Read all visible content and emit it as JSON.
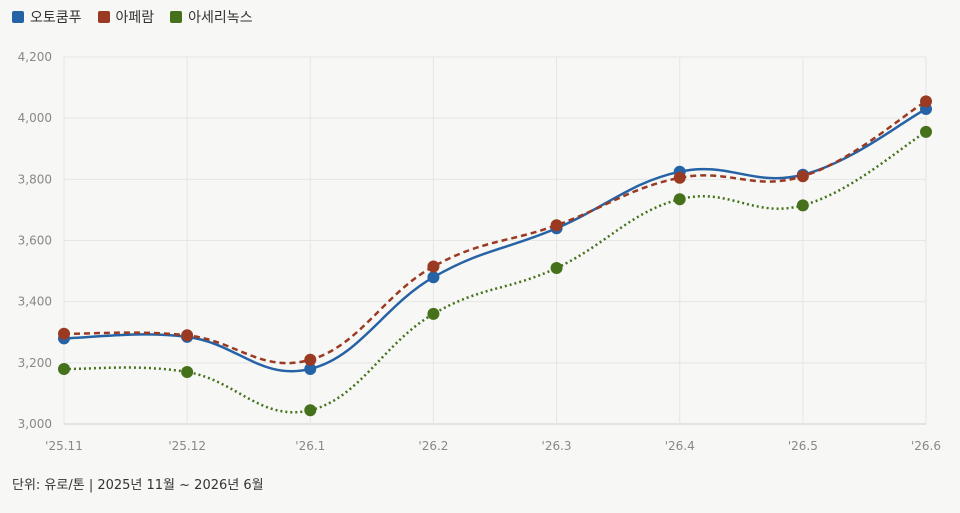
{
  "footer": "단위: 유로/톤 | 2025년 11월 ~ 2026년 6월",
  "chart_data": {
    "type": "line",
    "categories": [
      "'25.11",
      "'25.12",
      "'26.1",
      "'26.2",
      "'26.3",
      "'26.4",
      "'26.5",
      "'26.6"
    ],
    "ylim": [
      3000,
      4200
    ],
    "yticks": [
      "3,000",
      "3,200",
      "3,400",
      "3,600",
      "3,800",
      "4,000",
      "4,200"
    ],
    "ytick_values": [
      3000,
      3200,
      3400,
      3600,
      3800,
      4000,
      4200
    ],
    "grid": true,
    "legend_position": "top-left",
    "series": [
      {
        "name": "오토쿰푸",
        "color": "#2563a6",
        "dash": "solid",
        "values": [
          3280,
          3285,
          3180,
          3480,
          3640,
          3825,
          3815,
          4030
        ]
      },
      {
        "name": "아페람",
        "color": "#9b3a22",
        "dash": "dashed",
        "values": [
          3295,
          3290,
          3210,
          3515,
          3650,
          3805,
          3810,
          4055
        ]
      },
      {
        "name": "아세리녹스",
        "color": "#44711a",
        "dash": "dotted",
        "values": [
          3180,
          3170,
          3045,
          3360,
          3510,
          3735,
          3715,
          3955
        ]
      }
    ]
  }
}
